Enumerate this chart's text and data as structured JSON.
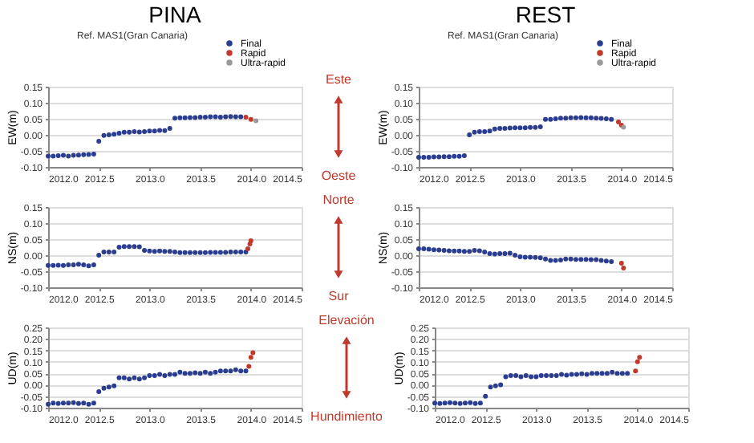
{
  "chart_data": [
    {
      "type": "scatter",
      "title": "PINA",
      "ylabel": "EW(m)",
      "annotations": [
        "Ref. MAS1(Gran Canaria)",
        "Este",
        "Oeste"
      ],
      "legend": "top right",
      "marker": "circle",
      "grid": "y",
      "xlim": [
        2012.0,
        2014.5
      ],
      "xticks": [
        {
          "value": 2012,
          "label": "2012.0"
        },
        2012.5,
        {
          "value": 2013,
          "label": "2013.0"
        },
        2013.5,
        {
          "value": 2014,
          "label": "2014.0"
        },
        2014.5
      ],
      "ylim": [
        -0.1,
        0.15
      ],
      "yticks": [
        {
          "value": -0.1,
          "label": "-0.10"
        },
        -0.05,
        {
          "value": 0,
          "label": "0.00"
        },
        0.05,
        {
          "value": 0.1,
          "label": "0.10"
        },
        0.15
      ],
      "series": [
        {
          "name": "Final",
          "color": "#2b3d8f",
          "x": [
            2012.0,
            2012.05,
            2012.1,
            2012.15,
            2012.2,
            2012.25,
            2012.3,
            2012.35,
            2012.4,
            2012.45,
            2012.5,
            2012.55,
            2012.6,
            2012.65,
            2012.7,
            2012.75,
            2012.8,
            2012.85,
            2012.9,
            2012.95,
            2013.0,
            2013.05,
            2013.1,
            2013.15,
            2013.2,
            2013.25,
            2013.3,
            2013.35,
            2013.4,
            2013.45,
            2013.5,
            2013.55,
            2013.6,
            2013.65,
            2013.7,
            2013.75,
            2013.8,
            2013.85,
            2013.9
          ],
          "values": [
            -0.066,
            -0.066,
            -0.065,
            -0.064,
            -0.066,
            -0.064,
            -0.063,
            -0.062,
            -0.061,
            -0.06,
            -0.02,
            -0.002,
            0.0,
            0.002,
            0.005,
            0.008,
            0.008,
            0.01,
            0.009,
            0.01,
            0.012,
            0.012,
            0.014,
            0.013,
            0.02,
            0.052,
            0.053,
            0.053,
            0.054,
            0.054,
            0.055,
            0.055,
            0.056,
            0.056,
            0.055,
            0.056,
            0.057,
            0.056,
            0.056
          ]
        },
        {
          "name": "Rapid",
          "color": "#c0392b",
          "x": [
            2013.95,
            2014.0
          ],
          "values": [
            0.055,
            0.048
          ]
        },
        {
          "name": "Ultra-rapid",
          "color": "#999999",
          "x": [
            2014.05
          ],
          "values": [
            0.044
          ]
        }
      ]
    },
    {
      "type": "scatter",
      "title": "REST",
      "ylabel": "EW(m)",
      "annotations": [
        "Ref. MAS1(Gran Canaria)"
      ],
      "legend": "top right",
      "marker": "circle",
      "grid": "y",
      "xlim": [
        2012.0,
        2014.5
      ],
      "xticks": [
        {
          "value": 2012,
          "label": "2012.0"
        },
        2012.5,
        {
          "value": 2013,
          "label": "2013.0"
        },
        2013.5,
        {
          "value": 2014,
          "label": "2014.0"
        },
        2014.5
      ],
      "ylim": [
        -0.1,
        0.15
      ],
      "yticks": [
        {
          "value": -0.1,
          "label": "-0.10"
        },
        -0.05,
        {
          "value": 0,
          "label": "0.00"
        },
        0.05,
        {
          "value": 0.1,
          "label": "0.10"
        },
        0.15
      ],
      "series": [
        {
          "name": "Final",
          "color": "#2b3d8f",
          "x": [
            2012.0,
            2012.05,
            2012.1,
            2012.15,
            2012.2,
            2012.25,
            2012.3,
            2012.35,
            2012.4,
            2012.45,
            2012.5,
            2012.55,
            2012.6,
            2012.65,
            2012.7,
            2012.75,
            2012.8,
            2012.85,
            2012.9,
            2012.95,
            2013.0,
            2013.05,
            2013.1,
            2013.15,
            2013.2,
            2013.25,
            2013.3,
            2013.35,
            2013.4,
            2013.45,
            2013.5,
            2013.55,
            2013.6,
            2013.65,
            2013.7,
            2013.75,
            2013.8,
            2013.85,
            2013.9
          ],
          "values": [
            -0.07,
            -0.07,
            -0.07,
            -0.069,
            -0.069,
            -0.068,
            -0.068,
            -0.067,
            -0.067,
            -0.065,
            0.0,
            0.008,
            0.01,
            0.01,
            0.012,
            0.018,
            0.02,
            0.02,
            0.021,
            0.022,
            0.022,
            0.022,
            0.023,
            0.023,
            0.025,
            0.048,
            0.048,
            0.05,
            0.052,
            0.052,
            0.053,
            0.053,
            0.054,
            0.053,
            0.053,
            0.052,
            0.051,
            0.05,
            0.048
          ]
        },
        {
          "name": "Rapid",
          "color": "#c0392b",
          "x": [
            2013.97,
            2014.0
          ],
          "values": [
            0.04,
            0.03
          ]
        },
        {
          "name": "Ultra-rapid",
          "color": "#999999",
          "x": [
            2014.02
          ],
          "values": [
            0.024
          ]
        }
      ]
    },
    {
      "type": "scatter",
      "ylabel": "NS(m)",
      "annotations": [
        "Norte",
        "Sur"
      ],
      "marker": "circle",
      "grid": "y",
      "xlim": [
        2012.0,
        2014.5
      ],
      "xticks": [
        {
          "value": 2012,
          "label": "2012.0"
        },
        2012.5,
        {
          "value": 2013,
          "label": "2013.0"
        },
        2013.5,
        {
          "value": 2014,
          "label": "2014.0"
        },
        2014.5
      ],
      "ylim": [
        -0.1,
        0.15
      ],
      "yticks": [
        {
          "value": -0.1,
          "label": "-0.10"
        },
        -0.05,
        {
          "value": 0,
          "label": "0.00"
        },
        0.05,
        {
          "value": 0.1,
          "label": "0.10"
        },
        0.15
      ],
      "series": [
        {
          "color": "#2b3d8f",
          "x": [
            2012.0,
            2012.05,
            2012.1,
            2012.15,
            2012.2,
            2012.25,
            2012.3,
            2012.35,
            2012.4,
            2012.45,
            2012.5,
            2012.55,
            2012.6,
            2012.65,
            2012.7,
            2012.75,
            2012.8,
            2012.85,
            2012.9,
            2012.95,
            2013.0,
            2013.05,
            2013.1,
            2013.15,
            2013.2,
            2013.25,
            2013.3,
            2013.35,
            2013.4,
            2013.45,
            2013.5,
            2013.55,
            2013.6,
            2013.65,
            2013.7,
            2013.75,
            2013.8,
            2013.85,
            2013.9,
            2013.95
          ],
          "values": [
            -0.032,
            -0.032,
            -0.031,
            -0.032,
            -0.03,
            -0.03,
            -0.028,
            -0.03,
            -0.033,
            -0.03,
            0.0,
            0.01,
            0.01,
            0.01,
            0.025,
            0.027,
            0.027,
            0.027,
            0.026,
            0.015,
            0.013,
            0.012,
            0.013,
            0.012,
            0.012,
            0.01,
            0.008,
            0.008,
            0.008,
            0.008,
            0.008,
            0.008,
            0.009,
            0.009,
            0.009,
            0.009,
            0.01,
            0.01,
            0.01,
            0.01
          ]
        },
        {
          "color": "#c0392b",
          "x": [
            2013.97,
            2013.99,
            2014.0
          ],
          "values": [
            0.02,
            0.035,
            0.045
          ]
        }
      ]
    },
    {
      "type": "scatter",
      "ylabel": "NS(m)",
      "marker": "circle",
      "grid": "y",
      "xlim": [
        2012.0,
        2014.5
      ],
      "xticks": [
        {
          "value": 2012,
          "label": "2012.0"
        },
        2012.5,
        {
          "value": 2013,
          "label": "2013.0"
        },
        2013.5,
        {
          "value": 2014,
          "label": "2014.0"
        },
        2014.5
      ],
      "ylim": [
        -0.1,
        0.15
      ],
      "yticks": [
        {
          "value": -0.1,
          "label": "-0.10"
        },
        -0.05,
        {
          "value": 0,
          "label": "0.00"
        },
        0.05,
        {
          "value": 0.1,
          "label": "0.10"
        },
        0.15
      ],
      "series": [
        {
          "color": "#2b3d8f",
          "x": [
            2012.0,
            2012.05,
            2012.1,
            2012.15,
            2012.2,
            2012.25,
            2012.3,
            2012.35,
            2012.4,
            2012.45,
            2012.5,
            2012.55,
            2012.6,
            2012.65,
            2012.7,
            2012.75,
            2012.8,
            2012.85,
            2012.9,
            2012.95,
            2013.0,
            2013.05,
            2013.1,
            2013.15,
            2013.2,
            2013.25,
            2013.3,
            2013.35,
            2013.4,
            2013.45,
            2013.5,
            2013.55,
            2013.6,
            2013.65,
            2013.7,
            2013.75,
            2013.8,
            2013.85,
            2013.9
          ],
          "values": [
            0.02,
            0.02,
            0.019,
            0.017,
            0.016,
            0.015,
            0.014,
            0.013,
            0.013,
            0.012,
            0.012,
            0.015,
            0.014,
            0.01,
            0.005,
            0.004,
            0.005,
            0.005,
            0.006,
            0.0,
            -0.005,
            -0.006,
            -0.006,
            -0.007,
            -0.008,
            -0.012,
            -0.016,
            -0.016,
            -0.015,
            -0.012,
            -0.012,
            -0.013,
            -0.013,
            -0.013,
            -0.014,
            -0.014,
            -0.016,
            -0.018,
            -0.02
          ]
        },
        {
          "color": "#c0392b",
          "x": [
            2014.0,
            2014.02
          ],
          "values": [
            -0.025,
            -0.04
          ]
        }
      ]
    },
    {
      "type": "scatter",
      "ylabel": "UD(m)",
      "annotations": [
        "Elevación",
        "Hundimiento"
      ],
      "marker": "circle",
      "grid": "y",
      "xlim": [
        2012.0,
        2014.5
      ],
      "xticks": [
        {
          "value": 2012,
          "label": "2012.0"
        },
        2012.5,
        {
          "value": 2013,
          "label": "2013.0"
        },
        2013.5,
        {
          "value": 2014,
          "label": "2014.0"
        },
        2014.5
      ],
      "ylim": [
        -0.1,
        0.25
      ],
      "yticks": [
        {
          "value": -0.1,
          "label": "-0.10"
        },
        -0.05,
        {
          "value": 0,
          "label": "0.00"
        },
        0.05,
        {
          "value": 0.1,
          "label": "0.10"
        },
        0.15,
        {
          "value": 0.2,
          "label": "0.20"
        },
        0.25
      ],
      "series": [
        {
          "color": "#2b3d8f",
          "x": [
            2012.0,
            2012.05,
            2012.1,
            2012.15,
            2012.2,
            2012.25,
            2012.3,
            2012.35,
            2012.4,
            2012.45,
            2012.5,
            2012.55,
            2012.6,
            2012.65,
            2012.7,
            2012.75,
            2012.8,
            2012.85,
            2012.9,
            2012.95,
            2013.0,
            2013.05,
            2013.1,
            2013.15,
            2013.2,
            2013.25,
            2013.3,
            2013.35,
            2013.4,
            2013.45,
            2013.5,
            2013.55,
            2013.6,
            2013.65,
            2013.7,
            2013.75,
            2013.8,
            2013.85,
            2013.9,
            2013.95
          ],
          "values": [
            -0.085,
            -0.08,
            -0.082,
            -0.08,
            -0.08,
            -0.078,
            -0.082,
            -0.08,
            -0.085,
            -0.08,
            -0.03,
            -0.015,
            -0.01,
            -0.005,
            0.03,
            0.03,
            0.025,
            0.03,
            0.025,
            0.03,
            0.04,
            0.04,
            0.045,
            0.04,
            0.045,
            0.045,
            0.055,
            0.05,
            0.05,
            0.052,
            0.05,
            0.055,
            0.05,
            0.055,
            0.06,
            0.06,
            0.06,
            0.065,
            0.06,
            0.06
          ]
        },
        {
          "color": "#c0392b",
          "x": [
            2013.98,
            2014.0,
            2014.02
          ],
          "values": [
            0.08,
            0.12,
            0.14
          ]
        }
      ]
    },
    {
      "type": "scatter",
      "ylabel": "UD(m)",
      "marker": "circle",
      "grid": "y",
      "xlim": [
        2012.0,
        2014.5
      ],
      "xticks": [
        {
          "value": 2012,
          "label": "2012.0"
        },
        2012.5,
        {
          "value": 2013,
          "label": "2013.0"
        },
        2013.5,
        {
          "value": 2014,
          "label": "2014.0"
        },
        2014.5
      ],
      "ylim": [
        -0.1,
        0.25
      ],
      "yticks": [
        {
          "value": -0.1,
          "label": "-0.10"
        },
        -0.05,
        {
          "value": 0,
          "label": "0.00"
        },
        0.05,
        {
          "value": 0.1,
          "label": "0.10"
        },
        0.15,
        {
          "value": 0.2,
          "label": "0.20"
        },
        0.25
      ],
      "series": [
        {
          "color": "#2b3d8f",
          "x": [
            2012.0,
            2012.05,
            2012.1,
            2012.15,
            2012.2,
            2012.25,
            2012.3,
            2012.35,
            2012.4,
            2012.45,
            2012.5,
            2012.55,
            2012.6,
            2012.65,
            2012.7,
            2012.75,
            2012.8,
            2012.85,
            2012.9,
            2012.95,
            2013.0,
            2013.05,
            2013.1,
            2013.15,
            2013.2,
            2013.25,
            2013.3,
            2013.35,
            2013.4,
            2013.45,
            2013.5,
            2013.55,
            2013.6,
            2013.65,
            2013.7,
            2013.75,
            2013.8,
            2013.85,
            2013.9
          ],
          "values": [
            -0.08,
            -0.082,
            -0.08,
            -0.078,
            -0.08,
            -0.082,
            -0.08,
            -0.078,
            -0.082,
            -0.08,
            -0.05,
            -0.01,
            -0.005,
            0.0,
            0.035,
            0.04,
            0.04,
            0.035,
            0.04,
            0.035,
            0.035,
            0.04,
            0.04,
            0.04,
            0.04,
            0.045,
            0.042,
            0.045,
            0.045,
            0.048,
            0.045,
            0.05,
            0.05,
            0.05,
            0.05,
            0.055,
            0.05,
            0.05,
            0.05
          ]
        },
        {
          "color": "#c0392b",
          "x": [
            2013.98,
            2014.0,
            2014.02
          ],
          "values": [
            0.06,
            0.1,
            0.12
          ]
        }
      ]
    }
  ]
}
